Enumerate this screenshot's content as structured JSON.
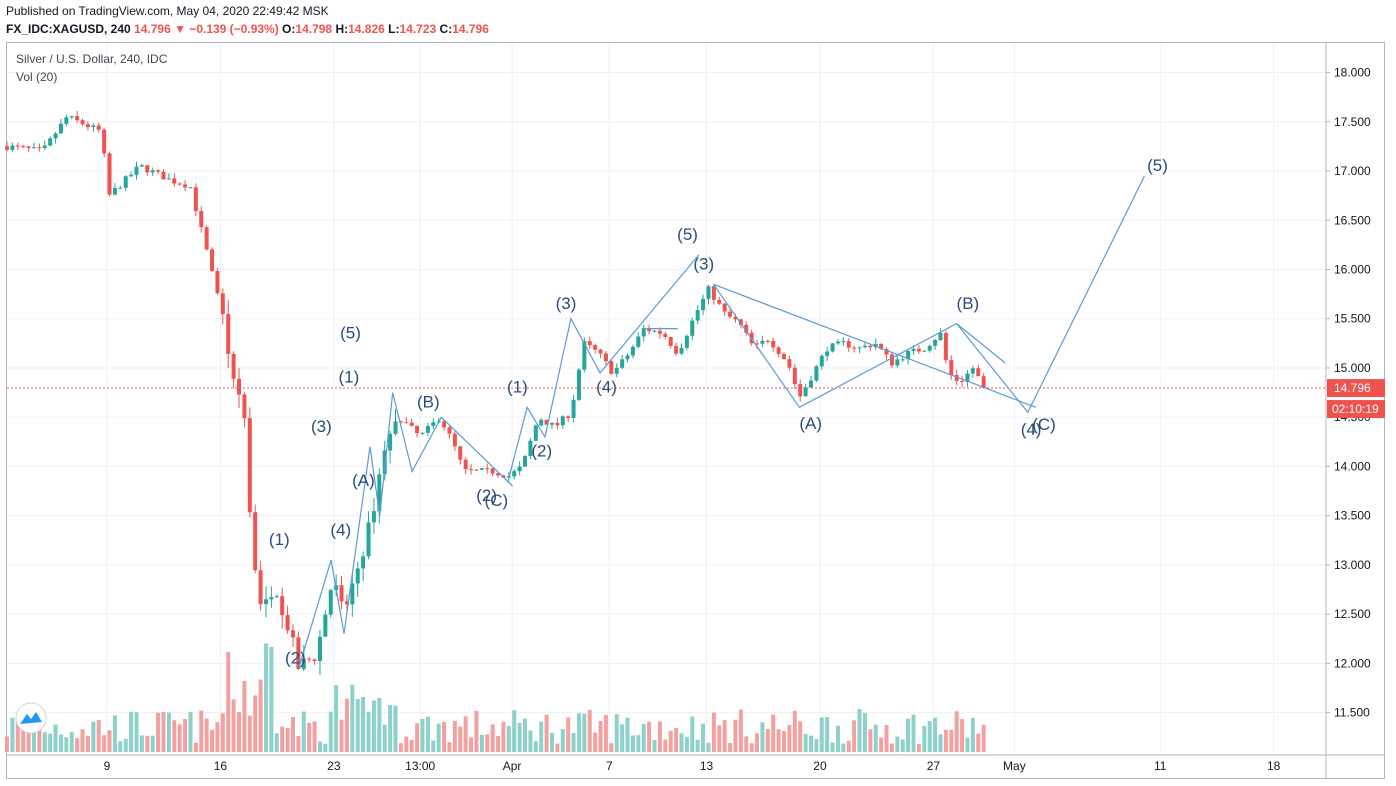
{
  "header": {
    "published": "Published on TradingView.com, May 04, 2020 22:49:42 MSK",
    "symbol": "FX_IDC:XAGUSD, 240",
    "last": "14.796",
    "change": "▼ −0.139 (−0.93%)",
    "o_label": "O:",
    "o_value": "14.798",
    "h_label": "H:",
    "h_value": "14.826",
    "l_label": "L:",
    "l_value": "14.723",
    "c_label": "C:",
    "c_value": "14.796"
  },
  "legend": {
    "title": "Silver / U.S. Dollar, 240, IDC",
    "volume": "Vol (20)"
  },
  "colors": {
    "up": "#26a69a",
    "down": "#ef5350",
    "up_vol": "#8dd1ca",
    "down_vol": "#f2a1a0",
    "wave": "#5b9bd5",
    "wave_text": "#2a4d7a",
    "grid": "#eef0f3",
    "price_line": "#ef5350"
  },
  "price_tags": {
    "current": "14.796",
    "countdown": "02:10:19"
  },
  "chart_data": {
    "type": "candlestick",
    "title": "Silver / U.S. Dollar, 240, IDC",
    "ylim": [
      11.1,
      18.3
    ],
    "y_ticks": [
      "18.000",
      "17.500",
      "17.000",
      "16.500",
      "16.000",
      "15.500",
      "15.000",
      "14.500",
      "14.000",
      "13.500",
      "13.000",
      "12.500",
      "12.000",
      "11.500"
    ],
    "x_ticks": [
      {
        "label": "9",
        "x": 6.17
      },
      {
        "label": "16",
        "x": 13.17
      },
      {
        "label": "23",
        "x": 20.17
      },
      {
        "label": "13:00",
        "x": 25.5
      },
      {
        "label": "Apr",
        "x": 31.17
      },
      {
        "label": "7",
        "x": 37.17
      },
      {
        "label": "13",
        "x": 43.17
      },
      {
        "label": "20",
        "x": 50.17
      },
      {
        "label": "27",
        "x": 57.17
      },
      {
        "label": "May",
        "x": 62.17
      },
      {
        "label": "11",
        "x": 71.17
      },
      {
        "label": "18",
        "x": 78.17
      }
    ],
    "x_domain": [
      0,
      81.4
    ],
    "current_price": 14.796,
    "key_points": [
      {
        "x": 0.0,
        "y": 17.25
      },
      {
        "x": 2.2,
        "y": 17.2
      },
      {
        "x": 3.7,
        "y": 17.55
      },
      {
        "x": 5.8,
        "y": 17.4
      },
      {
        "x": 6.3,
        "y": 16.75
      },
      {
        "x": 8.2,
        "y": 17.05
      },
      {
        "x": 10.2,
        "y": 16.9
      },
      {
        "x": 11.3,
        "y": 16.85
      },
      {
        "x": 12.3,
        "y": 16.2
      },
      {
        "x": 13.4,
        "y": 15.45
      },
      {
        "x": 14.0,
        "y": 14.8
      },
      {
        "x": 14.6,
        "y": 14.65
      },
      {
        "x": 15.1,
        "y": 13.2
      },
      {
        "x": 15.8,
        "y": 12.5
      },
      {
        "x": 16.5,
        "y": 12.85
      },
      {
        "x": 17.3,
        "y": 12.4
      },
      {
        "x": 18.0,
        "y": 11.95
      },
      {
        "x": 19.1,
        "y": 12.1
      },
      {
        "x": 20.1,
        "y": 12.85
      },
      {
        "x": 20.8,
        "y": 12.5
      },
      {
        "x": 21.6,
        "y": 12.95
      },
      {
        "x": 22.4,
        "y": 13.4
      },
      {
        "x": 23.3,
        "y": 14.2
      },
      {
        "x": 24.2,
        "y": 14.5
      },
      {
        "x": 25.5,
        "y": 14.3
      },
      {
        "x": 26.7,
        "y": 14.5
      },
      {
        "x": 27.5,
        "y": 14.25
      },
      {
        "x": 28.2,
        "y": 13.95
      },
      {
        "x": 30.0,
        "y": 13.95
      },
      {
        "x": 31.0,
        "y": 13.9
      },
      {
        "x": 31.8,
        "y": 14.0
      },
      {
        "x": 32.8,
        "y": 14.5
      },
      {
        "x": 33.8,
        "y": 14.4
      },
      {
        "x": 34.8,
        "y": 14.55
      },
      {
        "x": 35.6,
        "y": 15.25
      },
      {
        "x": 36.5,
        "y": 15.15
      },
      {
        "x": 37.4,
        "y": 14.95
      },
      {
        "x": 38.4,
        "y": 15.15
      },
      {
        "x": 39.3,
        "y": 15.4
      },
      {
        "x": 40.5,
        "y": 15.35
      },
      {
        "x": 41.4,
        "y": 15.15
      },
      {
        "x": 42.5,
        "y": 15.55
      },
      {
        "x": 43.3,
        "y": 15.8
      },
      {
        "x": 44.3,
        "y": 15.55
      },
      {
        "x": 45.2,
        "y": 15.45
      },
      {
        "x": 46.1,
        "y": 15.2
      },
      {
        "x": 47.0,
        "y": 15.3
      },
      {
        "x": 48.2,
        "y": 15.05
      },
      {
        "x": 48.9,
        "y": 14.7
      },
      {
        "x": 49.6,
        "y": 14.9
      },
      {
        "x": 50.6,
        "y": 15.2
      },
      {
        "x": 51.6,
        "y": 15.25
      },
      {
        "x": 52.6,
        "y": 15.2
      },
      {
        "x": 53.6,
        "y": 15.25
      },
      {
        "x": 54.6,
        "y": 15.05
      },
      {
        "x": 55.6,
        "y": 15.15
      },
      {
        "x": 56.6,
        "y": 15.2
      },
      {
        "x": 57.6,
        "y": 15.35
      },
      {
        "x": 58.1,
        "y": 14.95
      },
      {
        "x": 58.8,
        "y": 14.85
      },
      {
        "x": 59.6,
        "y": 15.0
      },
      {
        "x": 60.3,
        "y": 14.8
      }
    ],
    "annotations": [
      {
        "label": "(5)",
        "x": 21.2,
        "y": 15.3
      },
      {
        "label": "(1)",
        "x": 21.1,
        "y": 14.85
      },
      {
        "label": "(3)",
        "x": 19.4,
        "y": 14.35
      },
      {
        "label": "(4)",
        "x": 20.6,
        "y": 13.3
      },
      {
        "label": "(1)",
        "x": 16.8,
        "y": 13.2
      },
      {
        "label": "(2)",
        "x": 17.8,
        "y": 12.0
      },
      {
        "label": "(B)",
        "x": 26.0,
        "y": 14.6
      },
      {
        "label": "(A)",
        "x": 22.0,
        "y": 13.8
      },
      {
        "label": "(2)",
        "x": 29.6,
        "y": 13.65
      },
      {
        "label": "(C)",
        "x": 30.2,
        "y": 13.6
      },
      {
        "label": "(1)",
        "x": 31.5,
        "y": 14.75
      },
      {
        "label": "(2)",
        "x": 33.0,
        "y": 14.1
      },
      {
        "label": "(3)",
        "x": 34.5,
        "y": 15.6
      },
      {
        "label": "(4)",
        "x": 37.0,
        "y": 14.75
      },
      {
        "label": "(5)",
        "x": 42.0,
        "y": 16.3
      },
      {
        "label": "(3)",
        "x": 43.0,
        "y": 16.0
      },
      {
        "label": "(A)",
        "x": 49.6,
        "y": 14.38
      },
      {
        "label": "(B)",
        "x": 59.3,
        "y": 15.6
      },
      {
        "label": "(4)",
        "x": 63.2,
        "y": 14.32
      },
      {
        "label": "(C)",
        "x": 64.0,
        "y": 14.37
      },
      {
        "label": "(5)",
        "x": 71.0,
        "y": 17.0
      }
    ]
  }
}
